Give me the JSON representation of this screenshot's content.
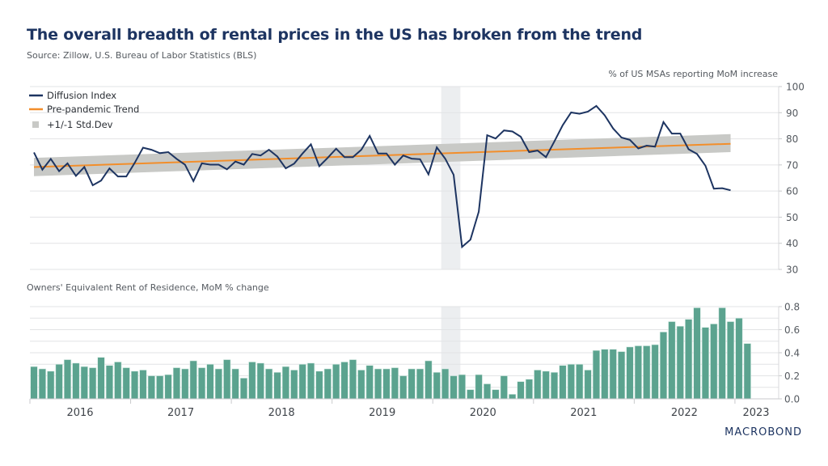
{
  "header": {
    "title": "The overall breadth of rental prices in the US has broken from the trend",
    "source": "Source: Zillow, U.S. Bureau of Labor Statistics (BLS)"
  },
  "brand": {
    "logo_text": "MACROBOND"
  },
  "colors": {
    "title": "#1d3461",
    "diffusion_line": "#1d3461",
    "trend_line": "#f28e2b",
    "std_band": "#c8c9c6",
    "recession_shade": "#eceef0",
    "bars": "#5ba38f",
    "grid": "#e2e3e5"
  },
  "chart_data": [
    {
      "type": "line",
      "title": "The overall breadth of rental prices in the US has broken from the trend",
      "ylabel": "% of US MSAs reporting MoM increase",
      "ylim": [
        30,
        100
      ],
      "yticks": [
        30,
        40,
        50,
        60,
        70,
        80,
        90,
        100
      ],
      "y_axis_side": "right",
      "grid": true,
      "legend_position": "top-left",
      "x_start": "2016-01",
      "x_frequency": "monthly",
      "shaded_period": {
        "start": "2020-02",
        "end": "2020-04",
        "label": "recession"
      },
      "legend": [
        {
          "name": "Diffusion Index",
          "kind": "line",
          "color": "#1d3461"
        },
        {
          "name": "Pre-pandemic Trend",
          "kind": "line",
          "color": "#f28e2b"
        },
        {
          "name": "+1/-1 Std.Dev",
          "kind": "band",
          "color": "#c8c9c6"
        }
      ],
      "series": [
        {
          "name": "Diffusion Index",
          "values": [
            74.8,
            68.2,
            72.3,
            67.6,
            70.6,
            65.8,
            69.2,
            62.2,
            64.0,
            68.7,
            65.6,
            65.6,
            70.8,
            76.6,
            75.8,
            74.5,
            74.9,
            72.3,
            70.1,
            63.8,
            70.6,
            70.1,
            70.1,
            68.3,
            71.3,
            70.1,
            74.2,
            73.6,
            75.8,
            73.2,
            68.7,
            70.5,
            74.4,
            77.9,
            69.5,
            72.7,
            76.2,
            73.0,
            73.0,
            75.8,
            81.1,
            74.4,
            74.4,
            70.1,
            73.6,
            72.4,
            72.2,
            66.4,
            76.7,
            72.4,
            66.2,
            38.6,
            41.4,
            52.1,
            81.4,
            80.1,
            83.2,
            82.8,
            80.8,
            74.9,
            75.5,
            73.0,
            79.0,
            85.2,
            90.1,
            89.6,
            90.4,
            92.6,
            89.0,
            84.0,
            80.5,
            79.6,
            76.3,
            77.4,
            77.0,
            86.4,
            82.0,
            82.0,
            76.0,
            74.2,
            69.7,
            60.9,
            61.1,
            60.3
          ]
        },
        {
          "name": "Pre-pandemic Trend",
          "start_value": 69.2,
          "end_value": 78.1,
          "end": "2022-12"
        },
        {
          "name": "+1/-1 Std.Dev",
          "lower_start": 65.7,
          "upper_start": 72.7,
          "lower_end": 74.9,
          "upper_end": 81.8,
          "end": "2022-12"
        }
      ]
    },
    {
      "type": "bar",
      "title": "Owners' Equivalent Rent of Residence, MoM % change",
      "ylim": [
        0.0,
        0.8
      ],
      "yticks": [
        "0.0",
        "0.2",
        "0.4",
        "0.6",
        "0.8"
      ],
      "y_axis_side": "right",
      "grid": true,
      "x_start": "2016-01",
      "x_frequency": "monthly",
      "xtick_labels": [
        "2016",
        "2017",
        "2018",
        "2019",
        "2020",
        "2021",
        "2022",
        "2023"
      ],
      "shaded_period": {
        "start": "2020-02",
        "end": "2020-04",
        "label": "recession"
      },
      "series": [
        {
          "name": "Owners' Equivalent Rent of Residence, MoM % change",
          "values": [
            0.28,
            0.26,
            0.24,
            0.3,
            0.34,
            0.31,
            0.28,
            0.27,
            0.36,
            0.29,
            0.32,
            0.27,
            0.24,
            0.25,
            0.2,
            0.2,
            0.21,
            0.27,
            0.26,
            0.33,
            0.27,
            0.3,
            0.26,
            0.34,
            0.26,
            0.18,
            0.32,
            0.31,
            0.26,
            0.23,
            0.28,
            0.25,
            0.3,
            0.31,
            0.24,
            0.26,
            0.3,
            0.32,
            0.34,
            0.25,
            0.29,
            0.26,
            0.26,
            0.27,
            0.2,
            0.26,
            0.26,
            0.33,
            0.23,
            0.26,
            0.2,
            0.21,
            0.08,
            0.21,
            0.13,
            0.08,
            0.2,
            0.04,
            0.15,
            0.17,
            0.25,
            0.24,
            0.23,
            0.29,
            0.3,
            0.3,
            0.25,
            0.42,
            0.43,
            0.43,
            0.41,
            0.45,
            0.46,
            0.46,
            0.47,
            0.58,
            0.67,
            0.63,
            0.69,
            0.79,
            0.62,
            0.65,
            0.79,
            0.67,
            0.7,
            0.48
          ]
        }
      ]
    }
  ]
}
